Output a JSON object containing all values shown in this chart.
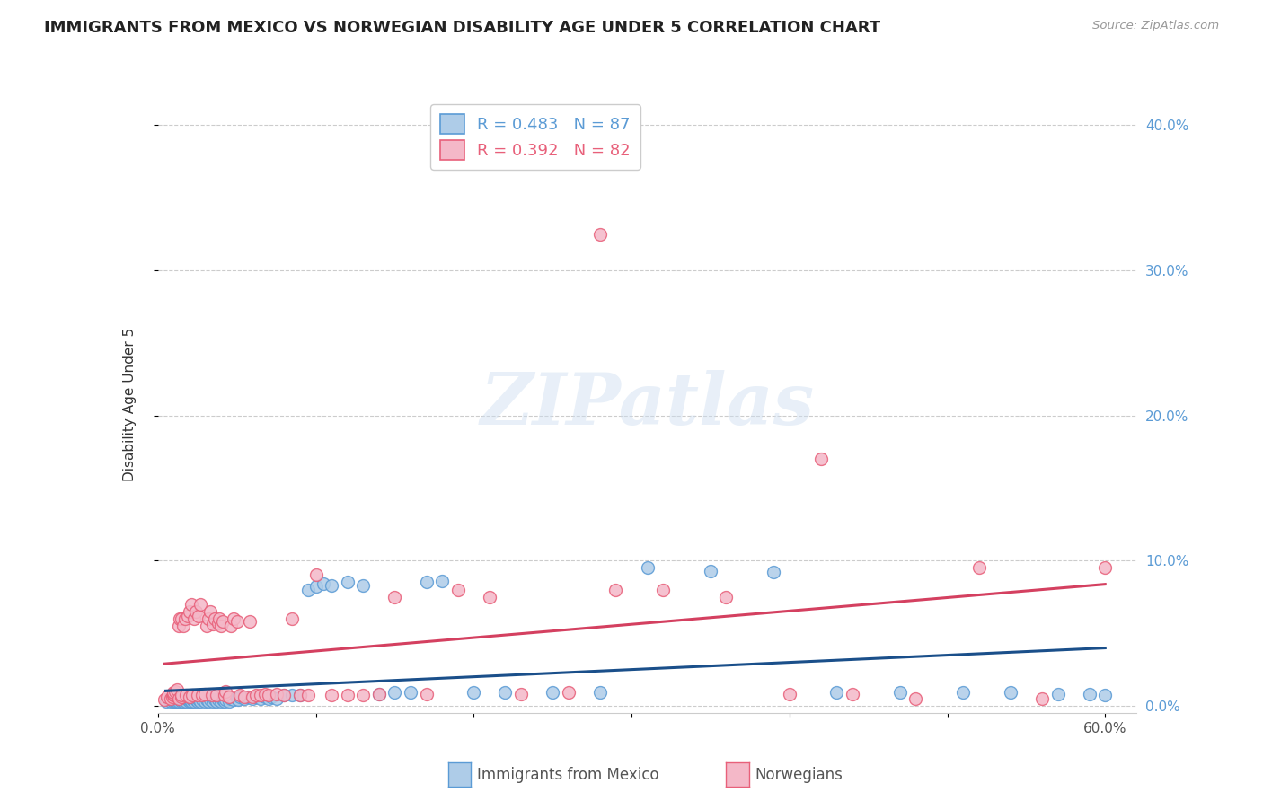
{
  "title": "IMMIGRANTS FROM MEXICO VS NORWEGIAN DISABILITY AGE UNDER 5 CORRELATION CHART",
  "source": "Source: ZipAtlas.com",
  "ylabel": "Disability Age Under 5",
  "ytick_values": [
    0.0,
    0.1,
    0.2,
    0.3,
    0.4
  ],
  "xtick_values": [
    0.0,
    0.1,
    0.2,
    0.3,
    0.4,
    0.5,
    0.6
  ],
  "xlim": [
    0.0,
    0.62
  ],
  "ylim": [
    -0.005,
    0.42
  ],
  "legend_entries": [
    {
      "label": "R = 0.483   N = 87",
      "color": "#5b9bd5"
    },
    {
      "label": "R = 0.392   N = 82",
      "color": "#e8607a"
    }
  ],
  "watermark": "ZIPatlas",
  "background_color": "#ffffff",
  "grid_color": "#cccccc",
  "title_fontsize": 13,
  "axis_label_fontsize": 11,
  "tick_fontsize": 11,
  "right_tick_color": "#5b9bd5",
  "mexico_color": "#aecce8",
  "mexico_edge_color": "#5b9bd5",
  "norway_color": "#f4b8c8",
  "norway_edge_color": "#e8607a",
  "mexico_line_color": "#1a4f8a",
  "norway_line_color": "#d44060",
  "mexico_scatter_x": [
    0.005,
    0.007,
    0.008,
    0.009,
    0.01,
    0.01,
    0.01,
    0.01,
    0.01,
    0.011,
    0.012,
    0.012,
    0.013,
    0.013,
    0.014,
    0.015,
    0.015,
    0.015,
    0.016,
    0.017,
    0.018,
    0.019,
    0.02,
    0.02,
    0.021,
    0.022,
    0.023,
    0.024,
    0.025,
    0.026,
    0.027,
    0.028,
    0.03,
    0.031,
    0.032,
    0.033,
    0.035,
    0.036,
    0.037,
    0.038,
    0.04,
    0.041,
    0.042,
    0.043,
    0.045,
    0.046,
    0.048,
    0.05,
    0.051,
    0.052,
    0.055,
    0.057,
    0.06,
    0.062,
    0.065,
    0.068,
    0.07,
    0.072,
    0.075,
    0.08,
    0.085,
    0.09,
    0.095,
    0.1,
    0.105,
    0.11,
    0.12,
    0.13,
    0.14,
    0.15,
    0.16,
    0.17,
    0.18,
    0.2,
    0.22,
    0.25,
    0.28,
    0.31,
    0.35,
    0.39,
    0.43,
    0.47,
    0.51,
    0.54,
    0.57,
    0.59,
    0.6
  ],
  "mexico_scatter_y": [
    0.003,
    0.004,
    0.003,
    0.004,
    0.003,
    0.004,
    0.005,
    0.004,
    0.005,
    0.003,
    0.004,
    0.003,
    0.004,
    0.003,
    0.004,
    0.003,
    0.004,
    0.005,
    0.003,
    0.004,
    0.003,
    0.004,
    0.003,
    0.004,
    0.003,
    0.004,
    0.003,
    0.004,
    0.003,
    0.004,
    0.003,
    0.004,
    0.003,
    0.004,
    0.003,
    0.004,
    0.003,
    0.004,
    0.003,
    0.004,
    0.003,
    0.004,
    0.003,
    0.004,
    0.003,
    0.005,
    0.004,
    0.005,
    0.004,
    0.006,
    0.005,
    0.006,
    0.005,
    0.006,
    0.005,
    0.006,
    0.005,
    0.006,
    0.005,
    0.007,
    0.007,
    0.007,
    0.08,
    0.082,
    0.084,
    0.083,
    0.085,
    0.083,
    0.008,
    0.009,
    0.009,
    0.085,
    0.086,
    0.009,
    0.009,
    0.009,
    0.009,
    0.095,
    0.093,
    0.092,
    0.009,
    0.009,
    0.009,
    0.009,
    0.008,
    0.008,
    0.007
  ],
  "norway_scatter_x": [
    0.004,
    0.006,
    0.008,
    0.009,
    0.01,
    0.01,
    0.01,
    0.011,
    0.012,
    0.013,
    0.013,
    0.014,
    0.015,
    0.015,
    0.015,
    0.016,
    0.017,
    0.018,
    0.019,
    0.02,
    0.02,
    0.021,
    0.022,
    0.023,
    0.024,
    0.025,
    0.026,
    0.027,
    0.028,
    0.03,
    0.031,
    0.032,
    0.033,
    0.034,
    0.035,
    0.036,
    0.037,
    0.038,
    0.039,
    0.04,
    0.041,
    0.042,
    0.043,
    0.045,
    0.046,
    0.048,
    0.05,
    0.052,
    0.055,
    0.058,
    0.06,
    0.062,
    0.065,
    0.068,
    0.07,
    0.075,
    0.08,
    0.085,
    0.09,
    0.095,
    0.1,
    0.11,
    0.12,
    0.13,
    0.14,
    0.15,
    0.17,
    0.19,
    0.21,
    0.23,
    0.26,
    0.29,
    0.32,
    0.36,
    0.4,
    0.44,
    0.48,
    0.52,
    0.56,
    0.6,
    0.28,
    0.42
  ],
  "norway_scatter_y": [
    0.004,
    0.006,
    0.005,
    0.006,
    0.007,
    0.008,
    0.009,
    0.01,
    0.011,
    0.005,
    0.055,
    0.06,
    0.006,
    0.007,
    0.06,
    0.055,
    0.06,
    0.007,
    0.062,
    0.006,
    0.065,
    0.07,
    0.007,
    0.06,
    0.065,
    0.007,
    0.062,
    0.07,
    0.007,
    0.008,
    0.055,
    0.06,
    0.065,
    0.007,
    0.056,
    0.06,
    0.007,
    0.057,
    0.06,
    0.055,
    0.058,
    0.007,
    0.01,
    0.006,
    0.055,
    0.06,
    0.058,
    0.007,
    0.006,
    0.058,
    0.006,
    0.007,
    0.007,
    0.008,
    0.007,
    0.008,
    0.007,
    0.06,
    0.007,
    0.007,
    0.09,
    0.007,
    0.007,
    0.007,
    0.008,
    0.075,
    0.008,
    0.08,
    0.075,
    0.008,
    0.009,
    0.08,
    0.08,
    0.075,
    0.008,
    0.008,
    0.005,
    0.095,
    0.005,
    0.095,
    0.325,
    0.17
  ]
}
